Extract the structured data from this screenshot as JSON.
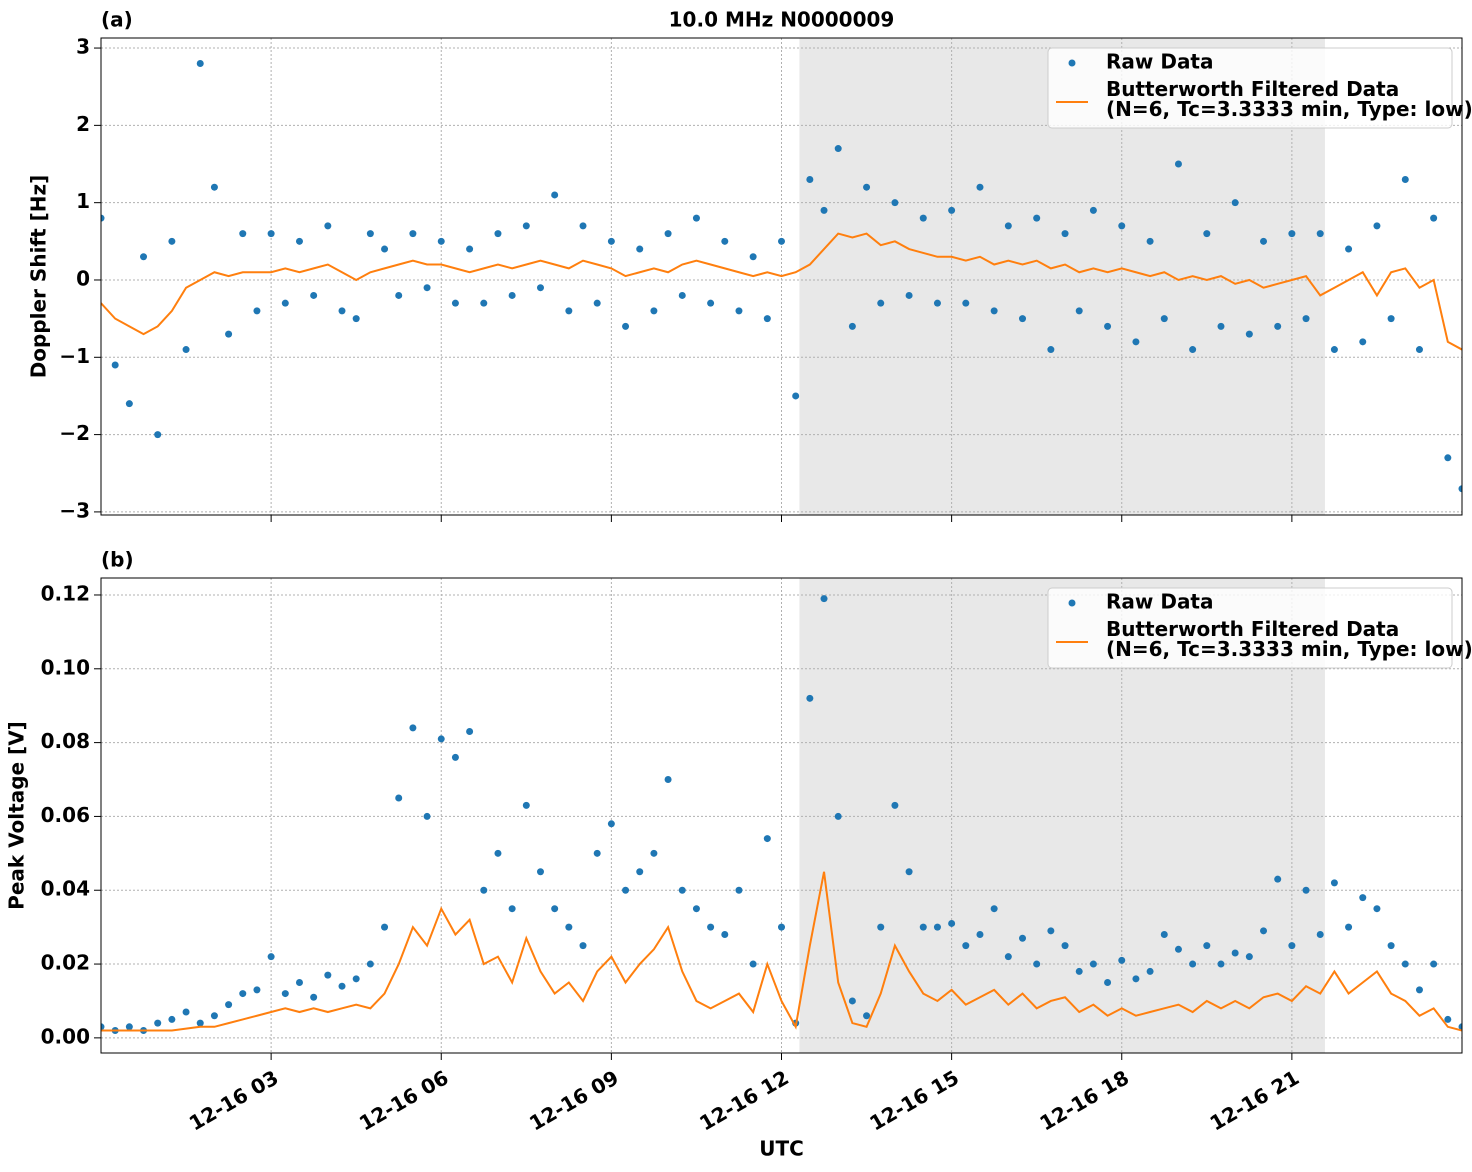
{
  "chart_data": [
    {
      "type": "line",
      "title": "10.0 MHz N0000009",
      "panel_label": "(a)",
      "ylabel": "Doppler Shift [Hz]",
      "x": [
        "12-16 00:00",
        "12-16 00:15",
        "12-16 00:30",
        "12-16 00:45",
        "12-16 01:00",
        "12-16 01:15",
        "12-16 01:30",
        "12-16 01:45",
        "12-16 02:00",
        "12-16 02:15",
        "12-16 02:30",
        "12-16 02:45",
        "12-16 03:00",
        "12-16 03:15",
        "12-16 03:30",
        "12-16 03:45",
        "12-16 04:00",
        "12-16 04:15",
        "12-16 04:30",
        "12-16 04:45",
        "12-16 05:00",
        "12-16 05:15",
        "12-16 05:30",
        "12-16 05:45",
        "12-16 06:00",
        "12-16 06:15",
        "12-16 06:30",
        "12-16 06:45",
        "12-16 07:00",
        "12-16 07:15",
        "12-16 07:30",
        "12-16 07:45",
        "12-16 08:00",
        "12-16 08:15",
        "12-16 08:30",
        "12-16 08:45",
        "12-16 09:00",
        "12-16 09:15",
        "12-16 09:30",
        "12-16 09:45",
        "12-16 10:00",
        "12-16 10:15",
        "12-16 10:30",
        "12-16 10:45",
        "12-16 11:00",
        "12-16 11:15",
        "12-16 11:30",
        "12-16 11:45",
        "12-16 12:00",
        "12-16 12:15",
        "12-16 12:30",
        "12-16 12:45",
        "12-16 13:00",
        "12-16 13:15",
        "12-16 13:30",
        "12-16 13:45",
        "12-16 14:00",
        "12-16 14:15",
        "12-16 14:30",
        "12-16 14:45",
        "12-16 15:00",
        "12-16 15:15",
        "12-16 15:30",
        "12-16 15:45",
        "12-16 16:00",
        "12-16 16:15",
        "12-16 16:30",
        "12-16 16:45",
        "12-16 17:00",
        "12-16 17:15",
        "12-16 17:30",
        "12-16 17:45",
        "12-16 18:00",
        "12-16 18:15",
        "12-16 18:30",
        "12-16 18:45",
        "12-16 19:00",
        "12-16 19:15",
        "12-16 19:30",
        "12-16 19:45",
        "12-16 20:00",
        "12-16 20:15",
        "12-16 20:30",
        "12-16 20:45",
        "12-16 21:00",
        "12-16 21:15",
        "12-16 21:30",
        "12-16 21:45",
        "12-16 22:00",
        "12-16 22:15",
        "12-16 22:30",
        "12-16 22:45",
        "12-16 23:00",
        "12-16 23:15",
        "12-16 23:30",
        "12-16 23:45",
        "12-17 00:00"
      ],
      "series": [
        {
          "name": "Raw Data",
          "type": "scatter",
          "color": "#1f77b4",
          "values": [
            0.8,
            -1.1,
            -1.6,
            0.3,
            -2.0,
            0.5,
            -0.9,
            2.8,
            1.2,
            -0.7,
            0.6,
            -0.4,
            0.6,
            -0.3,
            0.5,
            -0.2,
            0.7,
            -0.4,
            -0.5,
            0.6,
            0.4,
            -0.2,
            0.6,
            -0.1,
            0.5,
            -0.3,
            0.4,
            -0.3,
            0.6,
            -0.2,
            0.7,
            -0.1,
            1.1,
            -0.4,
            0.7,
            -0.3,
            0.5,
            -0.6,
            0.4,
            -0.4,
            0.6,
            -0.2,
            0.8,
            -0.3,
            0.5,
            -0.4,
            0.3,
            -0.5,
            0.5,
            -1.5,
            1.3,
            0.9,
            1.7,
            -0.6,
            1.2,
            -0.3,
            1.0,
            -0.2,
            0.8,
            -0.3,
            0.9,
            -0.3,
            1.2,
            -0.4,
            0.7,
            -0.5,
            0.8,
            -0.9,
            0.6,
            -0.4,
            0.9,
            -0.6,
            0.7,
            -0.8,
            0.5,
            -0.5,
            1.5,
            -0.9,
            0.6,
            -0.6,
            1.0,
            -0.7,
            0.5,
            -0.6,
            0.6,
            -0.5,
            0.6,
            -0.9,
            0.4,
            -0.8,
            0.7,
            -0.5,
            1.3,
            -0.9,
            0.8,
            -2.3,
            -2.7
          ]
        },
        {
          "name": "Butterworth Filtered Data\n(N=6, Tc=3.3333 min, Type: low)",
          "type": "line",
          "color": "#ff7f0e",
          "values": [
            -0.3,
            -0.5,
            -0.6,
            -0.7,
            -0.6,
            -0.4,
            -0.1,
            0.0,
            0.1,
            0.05,
            0.1,
            0.1,
            0.1,
            0.15,
            0.1,
            0.15,
            0.2,
            0.1,
            0.0,
            0.1,
            0.15,
            0.2,
            0.25,
            0.2,
            0.2,
            0.15,
            0.1,
            0.15,
            0.2,
            0.15,
            0.2,
            0.25,
            0.2,
            0.15,
            0.25,
            0.2,
            0.15,
            0.05,
            0.1,
            0.15,
            0.1,
            0.2,
            0.25,
            0.2,
            0.15,
            0.1,
            0.05,
            0.1,
            0.05,
            0.1,
            0.2,
            0.4,
            0.6,
            0.55,
            0.6,
            0.45,
            0.5,
            0.4,
            0.35,
            0.3,
            0.3,
            0.25,
            0.3,
            0.2,
            0.25,
            0.2,
            0.25,
            0.15,
            0.2,
            0.1,
            0.15,
            0.1,
            0.15,
            0.1,
            0.05,
            0.1,
            0.0,
            0.05,
            0.0,
            0.05,
            -0.05,
            0.0,
            -0.1,
            -0.05,
            0.0,
            0.05,
            -0.2,
            -0.1,
            0.0,
            0.1,
            -0.2,
            0.1,
            0.15,
            -0.1,
            0.0,
            -0.8,
            -0.9
          ]
        }
      ],
      "shaded": [
        "12-16 12:19",
        "12-16 21:35"
      ],
      "xlim": [
        "12-16 00:00",
        "12-17 00:00"
      ],
      "xticks": [
        "12-16 03:00",
        "12-16 06:00",
        "12-16 09:00",
        "12-16 12:00",
        "12-16 15:00",
        "12-16 18:00",
        "12-16 21:00"
      ],
      "ylim": [
        -3.04,
        3.13
      ],
      "yticks": [
        {
          "value": -3,
          "label": "−3"
        },
        {
          "value": -2,
          "label": "−2"
        },
        {
          "value": -1,
          "label": "−1"
        },
        0,
        1,
        2,
        3
      ],
      "grid": true,
      "legend": "upper right"
    },
    {
      "type": "line",
      "panel_label": "(b)",
      "ylabel": "Peak Voltage [V]",
      "xlabel": "UTC",
      "x": [
        "12-16 00:00",
        "12-16 00:15",
        "12-16 00:30",
        "12-16 00:45",
        "12-16 01:00",
        "12-16 01:15",
        "12-16 01:30",
        "12-16 01:45",
        "12-16 02:00",
        "12-16 02:15",
        "12-16 02:30",
        "12-16 02:45",
        "12-16 03:00",
        "12-16 03:15",
        "12-16 03:30",
        "12-16 03:45",
        "12-16 04:00",
        "12-16 04:15",
        "12-16 04:30",
        "12-16 04:45",
        "12-16 05:00",
        "12-16 05:15",
        "12-16 05:30",
        "12-16 05:45",
        "12-16 06:00",
        "12-16 06:15",
        "12-16 06:30",
        "12-16 06:45",
        "12-16 07:00",
        "12-16 07:15",
        "12-16 07:30",
        "12-16 07:45",
        "12-16 08:00",
        "12-16 08:15",
        "12-16 08:30",
        "12-16 08:45",
        "12-16 09:00",
        "12-16 09:15",
        "12-16 09:30",
        "12-16 09:45",
        "12-16 10:00",
        "12-16 10:15",
        "12-16 10:30",
        "12-16 10:45",
        "12-16 11:00",
        "12-16 11:15",
        "12-16 11:30",
        "12-16 11:45",
        "12-16 12:00",
        "12-16 12:15",
        "12-16 12:30",
        "12-16 12:45",
        "12-16 13:00",
        "12-16 13:15",
        "12-16 13:30",
        "12-16 13:45",
        "12-16 14:00",
        "12-16 14:15",
        "12-16 14:30",
        "12-16 14:45",
        "12-16 15:00",
        "12-16 15:15",
        "12-16 15:30",
        "12-16 15:45",
        "12-16 16:00",
        "12-16 16:15",
        "12-16 16:30",
        "12-16 16:45",
        "12-16 17:00",
        "12-16 17:15",
        "12-16 17:30",
        "12-16 17:45",
        "12-16 18:00",
        "12-16 18:15",
        "12-16 18:30",
        "12-16 18:45",
        "12-16 19:00",
        "12-16 19:15",
        "12-16 19:30",
        "12-16 19:45",
        "12-16 20:00",
        "12-16 20:15",
        "12-16 20:30",
        "12-16 20:45",
        "12-16 21:00",
        "12-16 21:15",
        "12-16 21:30",
        "12-16 21:45",
        "12-16 22:00",
        "12-16 22:15",
        "12-16 22:30",
        "12-16 22:45",
        "12-16 23:00",
        "12-16 23:15",
        "12-16 23:30",
        "12-16 23:45",
        "12-17 00:00"
      ],
      "series": [
        {
          "name": "Raw Data",
          "type": "scatter",
          "color": "#1f77b4",
          "values": [
            0.003,
            0.002,
            0.003,
            0.002,
            0.004,
            0.005,
            0.007,
            0.004,
            0.006,
            0.009,
            0.012,
            0.013,
            0.022,
            0.012,
            0.015,
            0.011,
            0.017,
            0.014,
            0.016,
            0.02,
            0.03,
            0.065,
            0.084,
            0.06,
            0.081,
            0.076,
            0.083,
            0.04,
            0.05,
            0.035,
            0.063,
            0.045,
            0.035,
            0.03,
            0.025,
            0.05,
            0.058,
            0.04,
            0.045,
            0.05,
            0.07,
            0.04,
            0.035,
            0.03,
            0.028,
            0.04,
            0.02,
            0.054,
            0.03,
            0.004,
            0.092,
            0.119,
            0.06,
            0.01,
            0.006,
            0.03,
            0.063,
            0.045,
            0.03,
            0.03,
            0.031,
            0.025,
            0.028,
            0.035,
            0.022,
            0.027,
            0.02,
            0.029,
            0.025,
            0.018,
            0.02,
            0.015,
            0.021,
            0.016,
            0.018,
            0.028,
            0.024,
            0.02,
            0.025,
            0.02,
            0.023,
            0.022,
            0.029,
            0.043,
            0.025,
            0.04,
            0.028,
            0.042,
            0.03,
            0.038,
            0.035,
            0.025,
            0.02,
            0.013,
            0.02,
            0.005,
            0.003
          ]
        },
        {
          "name": "Butterworth Filtered Data\n(N=6, Tc=3.3333 min, Type: low)",
          "type": "line",
          "color": "#ff7f0e",
          "values": [
            0.002,
            0.002,
            0.002,
            0.002,
            0.002,
            0.002,
            0.0025,
            0.003,
            0.003,
            0.004,
            0.005,
            0.006,
            0.007,
            0.008,
            0.007,
            0.008,
            0.007,
            0.008,
            0.009,
            0.008,
            0.012,
            0.02,
            0.03,
            0.025,
            0.035,
            0.028,
            0.032,
            0.02,
            0.022,
            0.015,
            0.027,
            0.018,
            0.012,
            0.015,
            0.01,
            0.018,
            0.022,
            0.015,
            0.02,
            0.024,
            0.03,
            0.018,
            0.01,
            0.008,
            0.01,
            0.012,
            0.007,
            0.02,
            0.01,
            0.003,
            0.025,
            0.045,
            0.015,
            0.004,
            0.003,
            0.012,
            0.025,
            0.018,
            0.012,
            0.01,
            0.013,
            0.009,
            0.011,
            0.013,
            0.009,
            0.012,
            0.008,
            0.01,
            0.011,
            0.007,
            0.009,
            0.006,
            0.008,
            0.006,
            0.007,
            0.008,
            0.009,
            0.007,
            0.01,
            0.008,
            0.01,
            0.008,
            0.011,
            0.012,
            0.01,
            0.014,
            0.012,
            0.018,
            0.012,
            0.015,
            0.018,
            0.012,
            0.01,
            0.006,
            0.008,
            0.003,
            0.002
          ]
        }
      ],
      "shaded": [
        "12-16 12:19",
        "12-16 21:35"
      ],
      "xlim": [
        "12-16 00:00",
        "12-17 00:00"
      ],
      "xticks": [
        {
          "value": "12-16 03:00",
          "label": "12-16 03"
        },
        {
          "value": "12-16 06:00",
          "label": "12-16 06"
        },
        {
          "value": "12-16 09:00",
          "label": "12-16 09"
        },
        {
          "value": "12-16 12:00",
          "label": "12-16 12"
        },
        {
          "value": "12-16 15:00",
          "label": "12-16 15"
        },
        {
          "value": "12-16 18:00",
          "label": "12-16 18"
        },
        {
          "value": "12-16 21:00",
          "label": "12-16 21"
        }
      ],
      "ylim": [
        -0.0041,
        0.1246
      ],
      "yticks": [
        {
          "value": 0,
          "label": "0.00"
        },
        {
          "value": 0.02,
          "label": "0.02"
        },
        {
          "value": 0.04,
          "label": "0.04"
        },
        {
          "value": 0.06,
          "label": "0.06"
        },
        {
          "value": 0.08,
          "label": "0.08"
        },
        {
          "value": 0.1,
          "label": "0.10"
        },
        {
          "value": 0.12,
          "label": "0.12"
        }
      ],
      "grid": true,
      "legend": "upper right"
    }
  ]
}
